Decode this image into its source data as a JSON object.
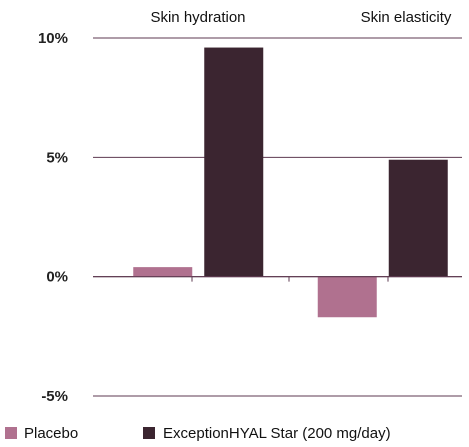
{
  "chart_data": {
    "type": "bar",
    "categories": [
      "Skin hydration",
      "Skin elasticity"
    ],
    "series": [
      {
        "name": "Placebo",
        "values": [
          0.4,
          -1.7
        ],
        "color": "#b0718f"
      },
      {
        "name": "ExceptionHYAL Star (200 mg/day)",
        "values": [
          9.6,
          4.9
        ],
        "color": "#3b2530"
      }
    ],
    "ylim": [
      -5,
      10
    ],
    "yticks": [
      10,
      5,
      0,
      -5
    ],
    "ytick_labels": [
      "10%",
      "5%",
      "0%",
      "-5%"
    ],
    "grid": true,
    "legend_position": "bottom",
    "axis_color": "#5e3a50"
  }
}
